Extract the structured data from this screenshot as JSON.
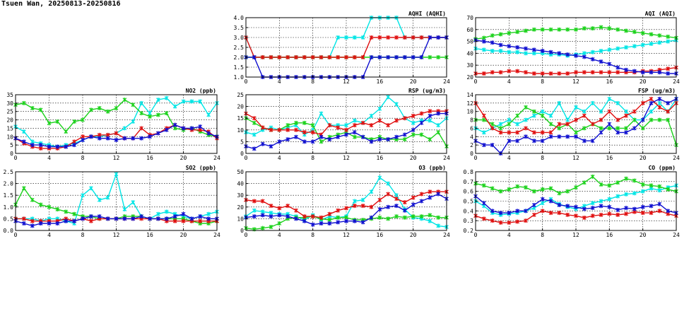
{
  "page_title": "Tsuen Wan, 20250813-20250816",
  "series_colors": [
    "#00e5e5",
    "#1cd21c",
    "#e01010",
    "#1010d0"
  ],
  "chart_data": [
    {
      "id": "aqhi",
      "type": "line",
      "title": "AQHI (AQHI)",
      "xlim": [
        0,
        24
      ],
      "xticks": [
        0,
        4,
        8,
        12,
        16,
        20,
        24
      ],
      "ylim": [
        1.0,
        4.0
      ],
      "yticks": [
        1.0,
        1.5,
        2.0,
        2.5,
        3.0,
        3.5,
        4.0
      ],
      "ytick_labels": [
        "1.0",
        "1.5",
        "2.0",
        "2.5",
        "3.0",
        "3.5",
        "4.0"
      ],
      "grid": true,
      "series": [
        {
          "values": [
            3,
            2,
            2,
            2,
            2,
            2,
            2,
            2,
            2,
            2,
            2,
            3,
            3,
            3,
            3,
            4,
            4,
            4,
            4,
            3,
            3,
            3,
            3,
            3,
            3
          ]
        },
        {
          "values": [
            2,
            2,
            2,
            2,
            2,
            2,
            2,
            2,
            2,
            2,
            2,
            2,
            2,
            2,
            2,
            2,
            2,
            2,
            2,
            2,
            2,
            2,
            2,
            2,
            2
          ]
        },
        {
          "values": [
            3,
            2,
            2,
            2,
            2,
            2,
            2,
            2,
            2,
            2,
            2,
            2,
            2,
            2,
            2,
            3,
            3,
            3,
            3,
            3,
            3,
            3,
            3,
            3,
            3
          ]
        },
        {
          "values": [
            2,
            2,
            1,
            1,
            1,
            1,
            1,
            1,
            1,
            1,
            1,
            1,
            1,
            1,
            1,
            2,
            2,
            2,
            2,
            2,
            2,
            2,
            3,
            3,
            3
          ]
        }
      ]
    },
    {
      "id": "aqi",
      "type": "line",
      "title": "AQI (AQI)",
      "xlim": [
        0,
        24
      ],
      "xticks": [
        0,
        4,
        8,
        12,
        16,
        20,
        24
      ],
      "ylim": [
        20,
        70
      ],
      "yticks": [
        20,
        30,
        40,
        50,
        60,
        70
      ],
      "ytick_labels": [
        "20",
        "30",
        "40",
        "50",
        "60",
        "70"
      ],
      "grid": true,
      "series": [
        {
          "values": [
            44,
            43,
            42,
            42,
            41,
            41,
            40,
            40,
            40,
            39,
            39,
            38,
            39,
            40,
            41,
            42,
            43,
            44,
            45,
            46,
            47,
            48,
            49,
            50,
            51
          ]
        },
        {
          "values": [
            52,
            53,
            55,
            56,
            57,
            58,
            59,
            60,
            60,
            60,
            60,
            60,
            60,
            61,
            61,
            62,
            61,
            60,
            59,
            58,
            57,
            56,
            55,
            54,
            53
          ]
        },
        {
          "values": [
            23,
            23,
            24,
            24,
            25,
            25,
            24,
            23,
            23,
            23,
            23,
            23,
            24,
            24,
            24,
            24,
            24,
            24,
            24,
            24,
            25,
            25,
            26,
            27,
            28
          ]
        },
        {
          "values": [
            51,
            50,
            49,
            47,
            46,
            45,
            44,
            43,
            42,
            41,
            40,
            39,
            38,
            37,
            35,
            33,
            31,
            28,
            26,
            25,
            24,
            24,
            24,
            23,
            23
          ]
        }
      ]
    },
    {
      "id": "no2",
      "type": "line",
      "title": "NO2 (ppb)",
      "xlim": [
        0,
        24
      ],
      "xticks": [
        0,
        4,
        8,
        12,
        16,
        20,
        24
      ],
      "ylim": [
        0,
        35
      ],
      "yticks": [
        0,
        5,
        10,
        15,
        20,
        25,
        30,
        35
      ],
      "ytick_labels": [
        "0",
        "5",
        "10",
        "15",
        "20",
        "25",
        "30",
        "35"
      ],
      "grid": true,
      "series": [
        {
          "values": [
            16,
            13,
            7,
            6,
            5,
            4,
            5,
            6,
            8,
            10,
            10,
            11,
            12,
            15,
            19,
            30,
            24,
            32,
            33,
            28,
            31,
            31,
            31,
            23,
            30
          ]
        },
        {
          "values": [
            29,
            30,
            27,
            26,
            18,
            19,
            13,
            19,
            20,
            26,
            27,
            25,
            27,
            32,
            29,
            24,
            22,
            23,
            24,
            15,
            14,
            15,
            13,
            11,
            10
          ]
        },
        {
          "values": [
            9,
            6,
            4,
            3,
            3,
            3,
            4,
            7,
            10,
            10,
            11,
            11,
            12,
            9,
            9,
            15,
            11,
            12,
            15,
            17,
            15,
            14,
            14,
            13,
            9
          ]
        },
        {
          "values": [
            9,
            7,
            5,
            5,
            4,
            4,
            4,
            5,
            8,
            10,
            9,
            9,
            8,
            9,
            9,
            9,
            10,
            12,
            14,
            17,
            15,
            15,
            16,
            12,
            10
          ]
        }
      ]
    },
    {
      "id": "rsp",
      "type": "line",
      "title": "RSP (ug/m3)",
      "xlim": [
        0,
        24
      ],
      "xticks": [
        0,
        4,
        8,
        12,
        16,
        20,
        24
      ],
      "ylim": [
        0,
        25
      ],
      "yticks": [
        0,
        5,
        10,
        15,
        20,
        25
      ],
      "ytick_labels": [
        "0",
        "5",
        "10",
        "15",
        "20",
        "25"
      ],
      "grid": true,
      "series": [
        {
          "values": [
            9,
            8,
            10,
            11,
            10,
            11,
            12,
            8,
            10,
            17,
            12,
            12,
            12,
            14,
            13,
            16,
            19,
            24,
            21,
            15,
            13,
            14,
            14,
            12,
            15
          ]
        },
        {
          "values": [
            15,
            13,
            11,
            10,
            10,
            12,
            13,
            13,
            12,
            5,
            7,
            8,
            9,
            7,
            7,
            6,
            7,
            6,
            6,
            6,
            8,
            8,
            6,
            9,
            3
          ]
        },
        {
          "values": [
            17,
            15,
            11,
            10,
            10,
            10,
            10,
            9,
            9,
            8,
            12,
            11,
            10,
            12,
            13,
            12,
            14,
            12,
            14,
            15,
            16,
            17,
            18,
            18,
            18
          ]
        },
        {
          "values": [
            3,
            2,
            4,
            3,
            5,
            6,
            7,
            5,
            5,
            7,
            6,
            7,
            8,
            9,
            7,
            5,
            6,
            6,
            7,
            8,
            10,
            13,
            16,
            17,
            17
          ]
        }
      ]
    },
    {
      "id": "fsp",
      "type": "line",
      "title": "FSP (ug/m3)",
      "xlim": [
        0,
        24
      ],
      "xticks": [
        0,
        4,
        8,
        12,
        16,
        20,
        24
      ],
      "ylim": [
        0,
        14
      ],
      "yticks": [
        0,
        2,
        4,
        6,
        8,
        10,
        12,
        14
      ],
      "ytick_labels": [
        "0",
        "2",
        "4",
        "6",
        "8",
        "10",
        "12",
        "14"
      ],
      "grid": true,
      "series": [
        {
          "values": [
            6,
            5,
            6,
            7,
            8,
            7,
            8,
            9,
            10,
            9,
            12,
            8,
            11,
            10,
            12,
            10,
            13,
            12,
            10,
            8,
            8,
            10,
            12,
            10,
            13
          ]
        },
        {
          "values": [
            8,
            8,
            7,
            6,
            7,
            9,
            11,
            10,
            9,
            7,
            6,
            7,
            5,
            6,
            7,
            6,
            6,
            6,
            6,
            8,
            6,
            8,
            8,
            8,
            2
          ]
        },
        {
          "values": [
            12,
            9,
            6,
            5,
            5,
            5,
            6,
            5,
            5,
            5,
            7,
            7,
            8,
            9,
            7,
            8,
            10,
            8,
            9,
            10,
            12,
            13,
            11,
            10,
            12
          ]
        },
        {
          "values": [
            3,
            2,
            2,
            0,
            3,
            3,
            4,
            3,
            3,
            4,
            4,
            4,
            4,
            3,
            3,
            5,
            7,
            5,
            5,
            6,
            8,
            12,
            13,
            12,
            13
          ]
        }
      ]
    },
    {
      "id": "so2",
      "type": "line",
      "title": "SO2 (ppb)",
      "xlim": [
        0,
        24
      ],
      "xticks": [
        0,
        4,
        8,
        12,
        16,
        20,
        24
      ],
      "ylim": [
        0.0,
        2.5
      ],
      "yticks": [
        0.0,
        0.5,
        1.0,
        1.5,
        2.0,
        2.5
      ],
      "ytick_labels": [
        "0.0",
        "0.5",
        "1.0",
        "1.5",
        "2.0",
        "2.5"
      ],
      "grid": true,
      "series": [
        {
          "values": [
            0.5,
            0.5,
            0.5,
            0.4,
            0.5,
            0.5,
            0.4,
            0.3,
            1.5,
            1.8,
            1.3,
            1.4,
            2.4,
            0.9,
            1.2,
            0.6,
            0.5,
            0.7,
            0.8,
            0.7,
            0.6,
            0.5,
            0.6,
            0.7,
            0.8
          ]
        },
        {
          "values": [
            1.1,
            1.8,
            1.3,
            1.1,
            1.0,
            0.9,
            0.8,
            0.7,
            0.6,
            0.6,
            0.5,
            0.5,
            0.5,
            0.6,
            0.6,
            0.6,
            0.5,
            0.5,
            0.5,
            0.5,
            0.5,
            0.4,
            0.3,
            0.3,
            0.4
          ]
        },
        {
          "values": [
            0.5,
            0.5,
            0.4,
            0.4,
            0.4,
            0.4,
            0.5,
            0.4,
            0.5,
            0.4,
            0.5,
            0.5,
            0.5,
            0.5,
            0.5,
            0.5,
            0.5,
            0.5,
            0.4,
            0.4,
            0.4,
            0.4,
            0.4,
            0.4,
            0.4
          ]
        },
        {
          "values": [
            0.4,
            0.3,
            0.2,
            0.3,
            0.3,
            0.3,
            0.4,
            0.4,
            0.5,
            0.6,
            0.6,
            0.5,
            0.5,
            0.5,
            0.5,
            0.6,
            0.5,
            0.5,
            0.5,
            0.6,
            0.7,
            0.5,
            0.6,
            0.5,
            0.5
          ]
        }
      ]
    },
    {
      "id": "o3",
      "type": "line",
      "title": "O3 (ppb)",
      "xlim": [
        0,
        24
      ],
      "xticks": [
        0,
        4,
        8,
        12,
        16,
        20,
        24
      ],
      "ylim": [
        0,
        50
      ],
      "yticks": [
        0,
        10,
        20,
        30,
        40,
        50
      ],
      "ytick_labels": [
        "0",
        "10",
        "20",
        "30",
        "40",
        "50"
      ],
      "grid": true,
      "series": [
        {
          "values": [
            12,
            17,
            16,
            15,
            14,
            14,
            12,
            9,
            13,
            9,
            12,
            11,
            12,
            25,
            26,
            33,
            45,
            40,
            30,
            18,
            11,
            10,
            8,
            4,
            3
          ]
        },
        {
          "values": [
            2,
            1,
            2,
            3,
            6,
            10,
            11,
            11,
            12,
            10,
            9,
            11,
            11,
            9,
            9,
            10,
            11,
            10,
            12,
            11,
            12,
            12,
            13,
            11,
            11
          ]
        },
        {
          "values": [
            26,
            25,
            25,
            21,
            19,
            21,
            17,
            12,
            12,
            11,
            14,
            17,
            19,
            21,
            21,
            20,
            26,
            31,
            27,
            24,
            28,
            31,
            33,
            33,
            33
          ]
        },
        {
          "values": [
            11,
            12,
            13,
            12,
            13,
            12,
            10,
            8,
            5,
            6,
            6,
            7,
            8,
            8,
            7,
            11,
            18,
            20,
            21,
            17,
            22,
            25,
            28,
            31,
            27
          ]
        }
      ]
    },
    {
      "id": "co",
      "type": "line",
      "title": "CO (ppm)",
      "xlim": [
        0,
        24
      ],
      "xticks": [
        0,
        4,
        8,
        12,
        16,
        20,
        24
      ],
      "ylim": [
        0.2,
        0.8
      ],
      "yticks": [
        0.2,
        0.3,
        0.4,
        0.5,
        0.6,
        0.7,
        0.8
      ],
      "ytick_labels": [
        "0.2",
        "0.3",
        "0.4",
        "0.5",
        "0.6",
        "0.7",
        "0.8"
      ],
      "grid": true,
      "series": [
        {
          "values": [
            0.5,
            0.45,
            0.38,
            0.36,
            0.37,
            0.38,
            0.4,
            0.43,
            0.48,
            0.52,
            0.47,
            0.44,
            0.42,
            0.45,
            0.48,
            0.5,
            0.52,
            0.55,
            0.57,
            0.58,
            0.6,
            0.63,
            0.61,
            0.64,
            0.66
          ]
        },
        {
          "values": [
            0.68,
            0.66,
            0.63,
            0.6,
            0.62,
            0.65,
            0.64,
            0.6,
            0.62,
            0.63,
            0.58,
            0.6,
            0.64,
            0.69,
            0.75,
            0.67,
            0.66,
            0.69,
            0.73,
            0.71,
            0.67,
            0.66,
            0.65,
            0.62,
            0.6
          ]
        },
        {
          "values": [
            0.35,
            0.32,
            0.3,
            0.28,
            0.28,
            0.29,
            0.3,
            0.36,
            0.4,
            0.38,
            0.38,
            0.36,
            0.35,
            0.33,
            0.35,
            0.36,
            0.37,
            0.36,
            0.37,
            0.39,
            0.38,
            0.38,
            0.4,
            0.37,
            0.35
          ]
        },
        {
          "values": [
            0.55,
            0.48,
            0.4,
            0.38,
            0.38,
            0.4,
            0.4,
            0.46,
            0.52,
            0.5,
            0.46,
            0.45,
            0.44,
            0.42,
            0.43,
            0.45,
            0.44,
            0.41,
            0.43,
            0.42,
            0.44,
            0.45,
            0.47,
            0.4,
            0.38
          ]
        }
      ]
    }
  ]
}
